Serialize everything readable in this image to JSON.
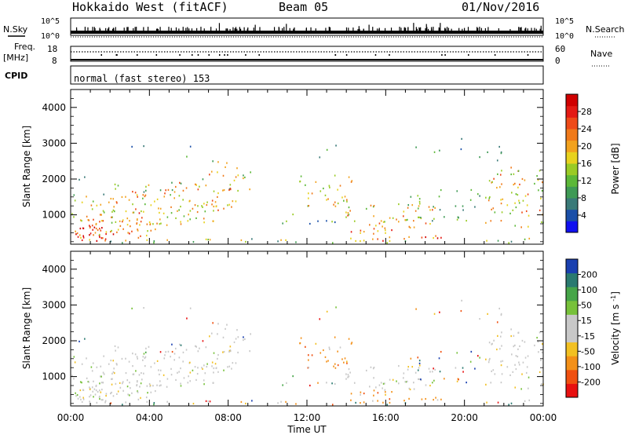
{
  "header": {
    "station": "Hokkaido West (fitACF)",
    "beam": "Beam 05",
    "date": "01/Nov/2016"
  },
  "status_panels": {
    "nsky_label": "N.Sky",
    "nsearch_label": "N.Search",
    "noise_ticks_left": [
      "10^5",
      "10^0"
    ],
    "noise_ticks_right": [
      "10^5",
      "10^0"
    ],
    "freq_label_line1": "Freq.",
    "freq_label_line2": "[MHz]",
    "freq_ticks": [
      "18",
      "8"
    ],
    "nave_label": "Nave",
    "nave_ticks": [
      "60",
      "0"
    ],
    "cpid_label": "CPID",
    "cpid_text": "normal (fast stereo) 153"
  },
  "colors": {
    "power_scale": [
      "#1010f0",
      "#1a4fa8",
      "#3a7a78",
      "#3f9a55",
      "#5cb838",
      "#9acb25",
      "#e8d21e",
      "#f2a21e",
      "#f07a1a",
      "#ee4a18",
      "#e41a14",
      "#d00000"
    ],
    "velocity_scale": [
      "#e81010",
      "#f05010",
      "#f39018",
      "#f2c022",
      "#c8c8c8",
      "#c8c8c8",
      "#77c13a",
      "#46a548",
      "#2a7a70",
      "#1a40b0"
    ]
  },
  "chart_data": [
    {
      "type": "heatmap",
      "name": "Power",
      "ylabel": "Slant Range [km]",
      "xlabel": "",
      "x_ticks": [
        "00:00",
        "04:00",
        "08:00",
        "12:00",
        "16:00",
        "20:00",
        "00:00"
      ],
      "y_ticks": [
        1000,
        2000,
        3000,
        4000
      ],
      "ylim": [
        180,
        4500
      ],
      "xlim_hours": [
        0,
        24
      ],
      "colorbar_label": "Power [dB]",
      "colorbar_ticks": [
        "4",
        "8",
        "12",
        "16",
        "20",
        "24",
        "28"
      ],
      "colorbar_range": [
        0,
        30
      ]
    },
    {
      "type": "heatmap",
      "name": "Velocity",
      "ylabel": "Slant Range [km]",
      "xlabel": "Time UT",
      "x_ticks": [
        "00:00",
        "04:00",
        "08:00",
        "12:00",
        "16:00",
        "20:00",
        "00:00"
      ],
      "y_ticks": [
        1000,
        2000,
        3000,
        4000
      ],
      "ylim": [
        180,
        4500
      ],
      "xlim_hours": [
        0,
        24
      ],
      "colorbar_label": "Velocity [m s^-1]",
      "colorbar_ticks": [
        "-200",
        "-100",
        "-50",
        "-15",
        "15",
        "50",
        "100",
        "200"
      ],
      "colorbar_range": [
        -250,
        250
      ]
    }
  ]
}
